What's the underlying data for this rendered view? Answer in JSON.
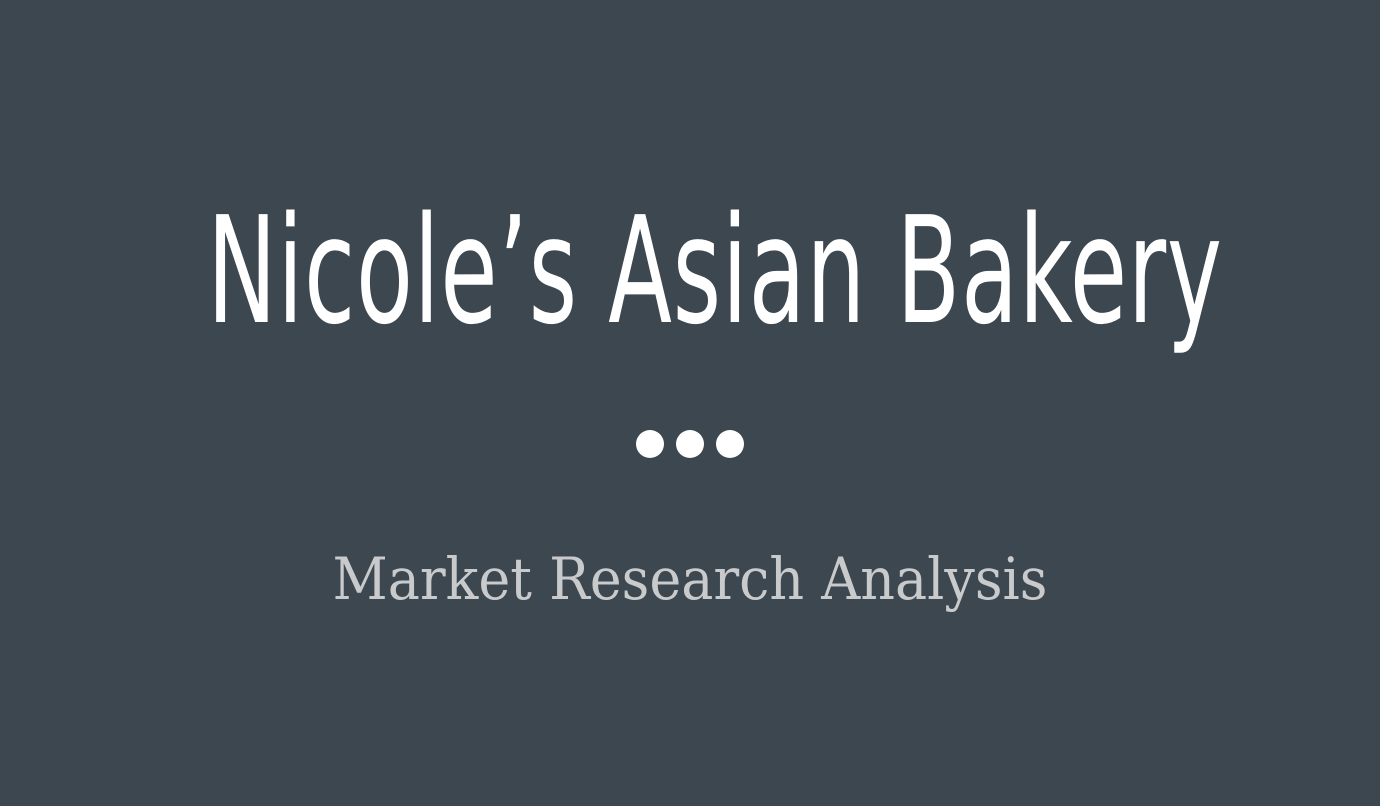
{
  "slide": {
    "title": "Nicole’s Asian Bakery",
    "subtitle": "Market Research Analysis",
    "separator": "three-dot-separator",
    "colors": {
      "background": "#3c4750",
      "title": "#ffffff",
      "subtitle": "#c9cacb"
    }
  }
}
